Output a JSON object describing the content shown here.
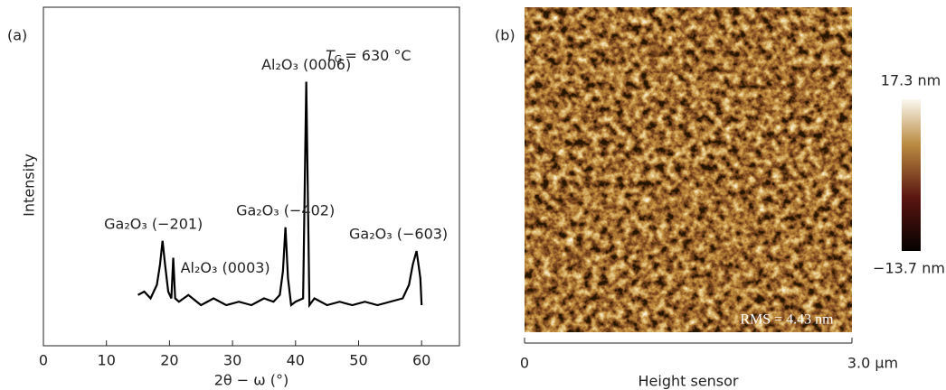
{
  "chart_data": [
    {
      "type": "line",
      "panel_label": "(a)",
      "y_label": "Intensity",
      "x_label": "2θ − ω (°)",
      "x": [
        15,
        16,
        17,
        18,
        18.5,
        18.9,
        19.3,
        19.8,
        20.3,
        20.6,
        20.9,
        21.5,
        23,
        25,
        27,
        29,
        31,
        33,
        35,
        36.5,
        37.5,
        38,
        38.4,
        38.8,
        39.3,
        40,
        41.2,
        41.7,
        42.2,
        43,
        45,
        47,
        49,
        51,
        53,
        55,
        57,
        58,
        58.6,
        59.2,
        59.8,
        60
      ],
      "series": [
        {
          "color": "#000000",
          "values": [
            15,
            16,
            14,
            18,
            24,
            31,
            24,
            16,
            14,
            26,
            14,
            13,
            15,
            12,
            14,
            12,
            13,
            12,
            14,
            13,
            15,
            22,
            35,
            20,
            12,
            13,
            14,
            78,
            12,
            14,
            12,
            13,
            12,
            13,
            12,
            13,
            14,
            18,
            24,
            28,
            20,
            12
          ]
        }
      ],
      "xlim": [
        0,
        66
      ],
      "xticks": [
        0,
        10,
        20,
        30,
        40,
        50,
        60
      ],
      "ylim": [
        0,
        100
      ],
      "temperature": {
        "symbol": "T",
        "subscript": "G",
        "text": "= 630 °C"
      },
      "annotations": [
        {
          "text": "Ga₂O₃ (−201)",
          "x": 18.9,
          "y": 31
        },
        {
          "text": "Al₂O₃ (0003)",
          "x": 20.6,
          "y": 26
        },
        {
          "text": "Ga₂O₃ (−402)",
          "x": 38.4,
          "y": 35
        },
        {
          "text": "Al₂O₃ (0006)",
          "x": 41.7,
          "y": 78
        },
        {
          "text": "Ga₂O₃ (−603)",
          "x": 59.2,
          "y": 28
        }
      ]
    },
    {
      "type": "image",
      "panel_label": "(b)",
      "x_label": "Height sensor",
      "x_start_label": "0",
      "x_end_label": "3.0 μm",
      "rms_label": "RMS = 4.43 nm",
      "colorbar": {
        "max_label": "17.3 nm",
        "min_label": "−13.7 nm"
      }
    }
  ]
}
